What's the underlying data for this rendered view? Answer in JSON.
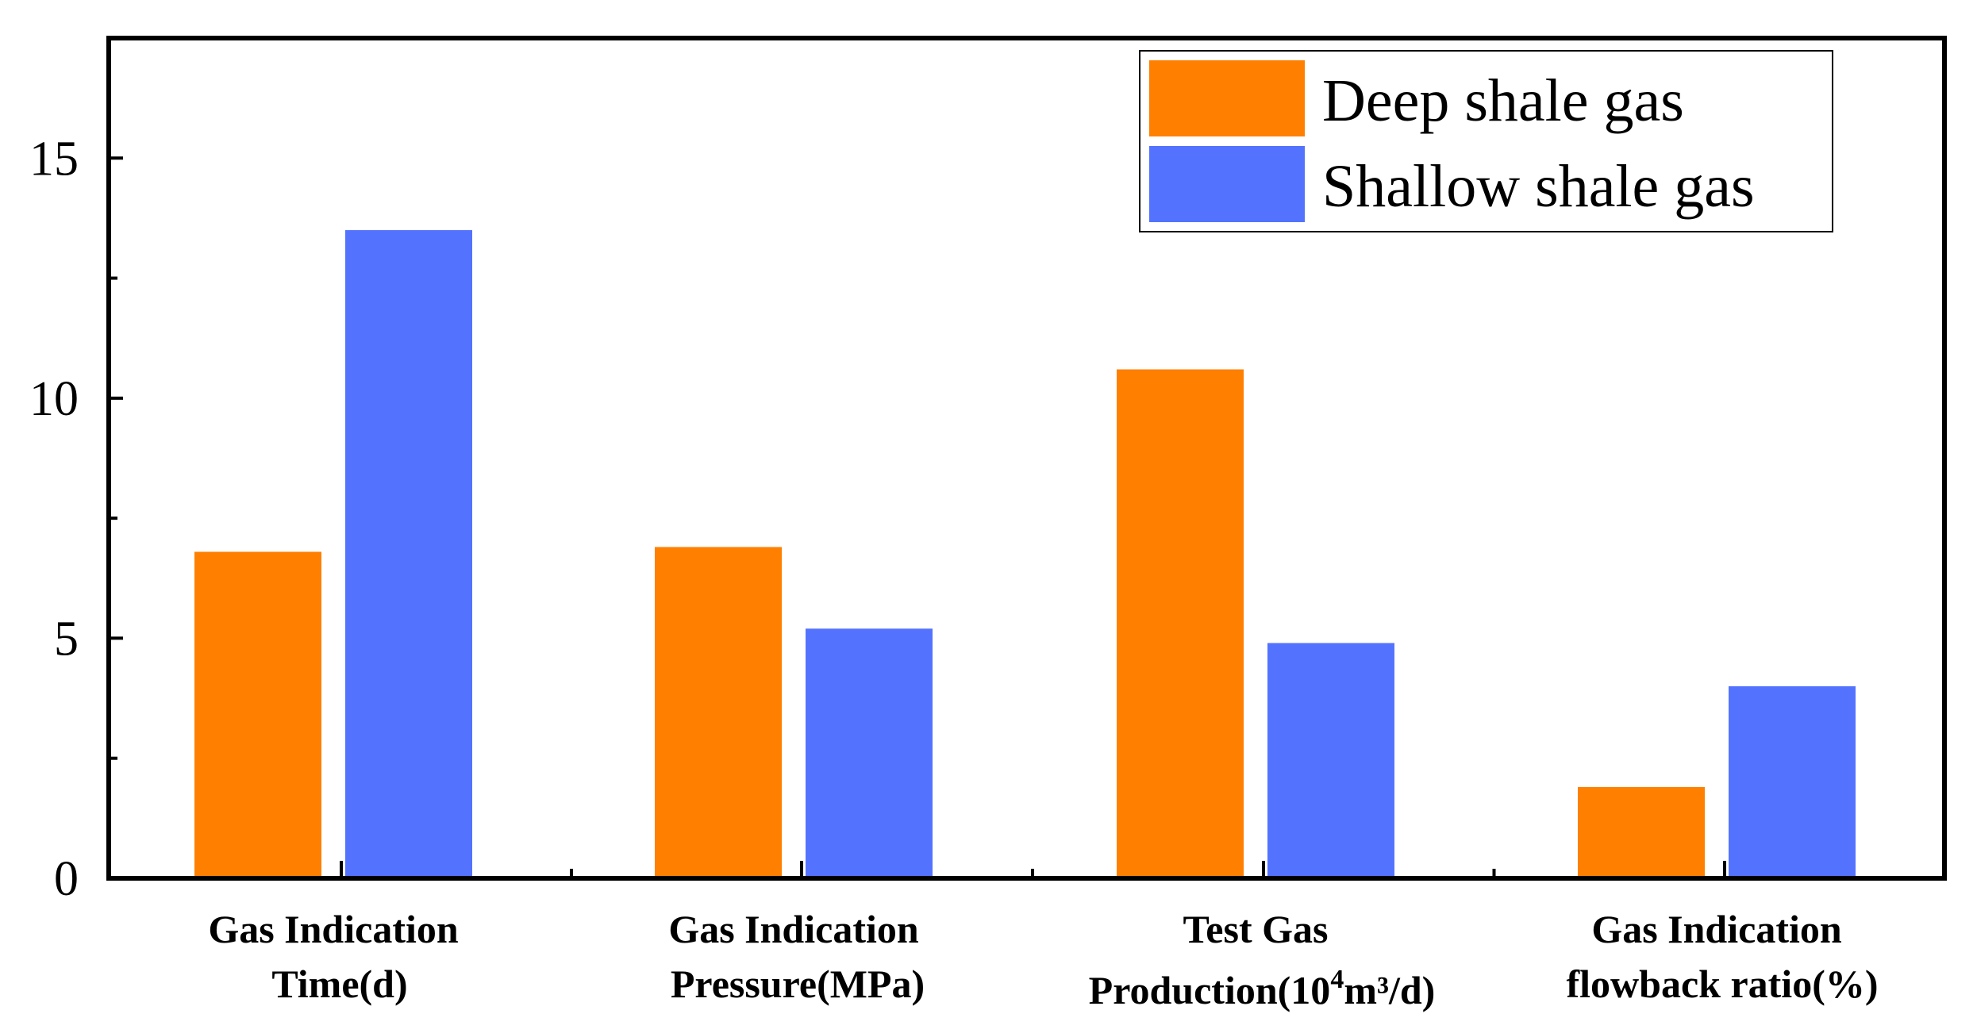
{
  "chart_data": {
    "type": "bar",
    "title": "",
    "xlabel": "",
    "ylabel": "",
    "ylim": [
      0,
      17.5
    ],
    "y_ticks": [
      0,
      5,
      10,
      15
    ],
    "y_tick_labels": [
      "0",
      "5",
      "10",
      "15"
    ],
    "grid": false,
    "legend_position": "top-right",
    "categories": [
      {
        "line1": "Gas Indication",
        "line2": "Time(d)"
      },
      {
        "line1": "Gas Indication",
        "line2": "Pressure(MPa)"
      },
      {
        "line1": "Test Gas",
        "line2_base": "Production(10",
        "line2_sup": "4",
        "line2_tail": "m³/d)"
      },
      {
        "line1": "Gas Indication",
        "line2": "flowback ratio(%)"
      }
    ],
    "series": [
      {
        "name": "Deep shale gas",
        "color": "#ff8000",
        "values": [
          6.8,
          6.9,
          10.6,
          1.9
        ]
      },
      {
        "name": "Shallow shale gas",
        "color": "#5373ff",
        "values": [
          13.5,
          5.2,
          4.9,
          4.0
        ]
      }
    ]
  }
}
